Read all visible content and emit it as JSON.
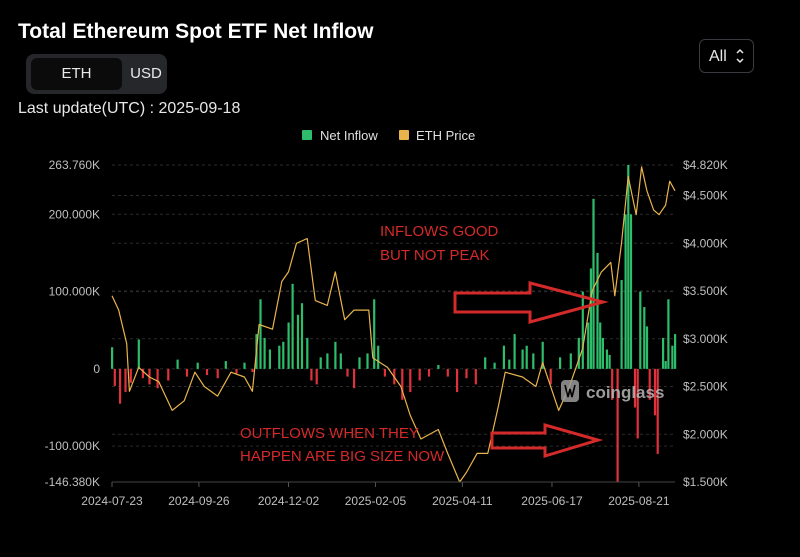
{
  "header": {
    "title": "Total Ethereum Spot ETF Net Inflow",
    "tabs": [
      "ETH",
      "USD"
    ],
    "active_tab": "ETH",
    "last_update": "Last update(UTC) : 2025-09-18",
    "range_select": "All"
  },
  "colors": {
    "inflow_positive": "#2ebd6b",
    "inflow_negative": "#e0323c",
    "eth_price": "#e9b44c",
    "annotation": "#d42a2a",
    "grid": "#2b2b2b"
  },
  "watermark": "coinglass",
  "annotations": {
    "inflows": [
      "INFLOWS GOOD",
      "BUT NOT PEAK"
    ],
    "outflows": [
      "OUTFLOWS WHEN THEY",
      "HAPPEN ARE BIG SIZE NOW"
    ]
  },
  "chart_data": {
    "type": "bar",
    "legend": [
      "Net Inflow",
      "ETH Price"
    ],
    "legend_position": "top-center",
    "grid": true,
    "x_ticks": [
      "2024-07-23",
      "2024-09-26",
      "2024-12-02",
      "2025-02-05",
      "2025-04-11",
      "2025-06-17",
      "2025-08-21"
    ],
    "x_range": [
      "2024-07-23",
      "2025-09-17"
    ],
    "y_left_ticks": [
      "263.760K",
      "200.000K",
      "100.000K",
      "0",
      "-100.000K",
      "-146.380K"
    ],
    "y_left_range": [
      -146380,
      263760
    ],
    "y_right_ticks": [
      "$4.820K",
      "$4.500K",
      "$4.000K",
      "$3.500K",
      "$3.000K",
      "$2.500K",
      "$2.000K",
      "$1.500K"
    ],
    "y_right_range": [
      1500,
      4820
    ],
    "series": [
      {
        "name": "Net Inflow",
        "type": "bar",
        "unit": "ETH",
        "points": [
          [
            "2024-07-23",
            28000
          ],
          [
            "2024-07-25",
            -22000
          ],
          [
            "2024-07-29",
            -45000
          ],
          [
            "2024-08-02",
            -30000
          ],
          [
            "2024-08-06",
            -18000
          ],
          [
            "2024-08-12",
            38000
          ],
          [
            "2024-08-15",
            -12000
          ],
          [
            "2024-08-20",
            -20000
          ],
          [
            "2024-08-26",
            -25000
          ],
          [
            "2024-09-03",
            -15000
          ],
          [
            "2024-09-10",
            12000
          ],
          [
            "2024-09-17",
            -10000
          ],
          [
            "2024-09-25",
            8000
          ],
          [
            "2024-10-02",
            -8000
          ],
          [
            "2024-10-10",
            -12000
          ],
          [
            "2024-10-16",
            10000
          ],
          [
            "2024-10-24",
            -6000
          ],
          [
            "2024-10-30",
            8000
          ],
          [
            "2024-11-05",
            -4000
          ],
          [
            "2024-11-08",
            45000
          ],
          [
            "2024-11-11",
            90000
          ],
          [
            "2024-11-14",
            40000
          ],
          [
            "2024-11-18",
            25000
          ],
          [
            "2024-11-25",
            30000
          ],
          [
            "2024-11-28",
            35000
          ],
          [
            "2024-12-02",
            60000
          ],
          [
            "2024-12-05",
            110000
          ],
          [
            "2024-12-09",
            70000
          ],
          [
            "2024-12-12",
            85000
          ],
          [
            "2024-12-16",
            40000
          ],
          [
            "2024-12-19",
            -15000
          ],
          [
            "2024-12-23",
            -20000
          ],
          [
            "2024-12-26",
            15000
          ],
          [
            "2024-12-31",
            20000
          ],
          [
            "2025-01-06",
            35000
          ],
          [
            "2025-01-10",
            20000
          ],
          [
            "2025-01-15",
            -10000
          ],
          [
            "2025-01-20",
            -25000
          ],
          [
            "2025-01-24",
            15000
          ],
          [
            "2025-01-30",
            20000
          ],
          [
            "2025-02-04",
            90000
          ],
          [
            "2025-02-07",
            30000
          ],
          [
            "2025-02-12",
            -10000
          ],
          [
            "2025-02-19",
            -20000
          ],
          [
            "2025-02-25",
            -40000
          ],
          [
            "2025-03-03",
            -30000
          ],
          [
            "2025-03-10",
            -15000
          ],
          [
            "2025-03-17",
            -10000
          ],
          [
            "2025-03-24",
            5000
          ],
          [
            "2025-03-31",
            -10000
          ],
          [
            "2025-04-07",
            -30000
          ],
          [
            "2025-04-14",
            -12000
          ],
          [
            "2025-04-21",
            -20000
          ],
          [
            "2025-04-28",
            15000
          ],
          [
            "2025-05-05",
            8000
          ],
          [
            "2025-05-12",
            30000
          ],
          [
            "2025-05-16",
            12000
          ],
          [
            "2025-05-20",
            45000
          ],
          [
            "2025-05-26",
            25000
          ],
          [
            "2025-05-29",
            30000
          ],
          [
            "2025-06-03",
            20000
          ],
          [
            "2025-06-10",
            35000
          ],
          [
            "2025-06-16",
            -20000
          ],
          [
            "2025-06-23",
            15000
          ],
          [
            "2025-07-01",
            20000
          ],
          [
            "2025-07-07",
            40000
          ],
          [
            "2025-07-10",
            100000
          ],
          [
            "2025-07-14",
            60000
          ],
          [
            "2025-07-16",
            130000
          ],
          [
            "2025-07-18",
            220000
          ],
          [
            "2025-07-21",
            150000
          ],
          [
            "2025-07-23",
            60000
          ],
          [
            "2025-07-25",
            40000
          ],
          [
            "2025-07-28",
            25000
          ],
          [
            "2025-07-30",
            18000
          ],
          [
            "2025-08-01",
            -40000
          ],
          [
            "2025-08-05",
            -146380
          ],
          [
            "2025-08-08",
            115000
          ],
          [
            "2025-08-11",
            200000
          ],
          [
            "2025-08-13",
            263760
          ],
          [
            "2025-08-15",
            200000
          ],
          [
            "2025-08-18",
            -50000
          ],
          [
            "2025-08-20",
            -90000
          ],
          [
            "2025-08-22",
            100000
          ],
          [
            "2025-08-25",
            80000
          ],
          [
            "2025-08-27",
            55000
          ],
          [
            "2025-08-29",
            -40000
          ],
          [
            "2025-09-02",
            -60000
          ],
          [
            "2025-09-04",
            -110000
          ],
          [
            "2025-09-08",
            40000
          ],
          [
            "2025-09-10",
            10000
          ],
          [
            "2025-09-12",
            90000
          ],
          [
            "2025-09-15",
            30000
          ],
          [
            "2025-09-17",
            45000
          ]
        ]
      },
      {
        "name": "ETH Price",
        "type": "line",
        "unit": "USD",
        "points": [
          [
            "2024-07-23",
            3450
          ],
          [
            "2024-07-28",
            3300
          ],
          [
            "2024-08-03",
            2950
          ],
          [
            "2024-08-05",
            2450
          ],
          [
            "2024-08-12",
            2700
          ],
          [
            "2024-08-20",
            2600
          ],
          [
            "2024-08-27",
            2550
          ],
          [
            "2024-09-06",
            2250
          ],
          [
            "2024-09-15",
            2350
          ],
          [
            "2024-09-23",
            2650
          ],
          [
            "2024-09-30",
            2500
          ],
          [
            "2024-10-10",
            2400
          ],
          [
            "2024-10-20",
            2650
          ],
          [
            "2024-10-30",
            2600
          ],
          [
            "2024-11-05",
            2450
          ],
          [
            "2024-11-10",
            3150
          ],
          [
            "2024-11-20",
            3100
          ],
          [
            "2024-11-27",
            3600
          ],
          [
            "2024-12-02",
            3700
          ],
          [
            "2024-12-08",
            4000
          ],
          [
            "2024-12-16",
            4050
          ],
          [
            "2024-12-22",
            3400
          ],
          [
            "2024-12-31",
            3350
          ],
          [
            "2025-01-06",
            3700
          ],
          [
            "2025-01-13",
            3200
          ],
          [
            "2025-01-20",
            3300
          ],
          [
            "2025-01-31",
            3300
          ],
          [
            "2025-02-03",
            2800
          ],
          [
            "2025-02-14",
            2700
          ],
          [
            "2025-02-24",
            2500
          ],
          [
            "2025-03-03",
            2200
          ],
          [
            "2025-03-11",
            1950
          ],
          [
            "2025-03-24",
            2050
          ],
          [
            "2025-03-31",
            1800
          ],
          [
            "2025-04-09",
            1500
          ],
          [
            "2025-04-14",
            1600
          ],
          [
            "2025-04-22",
            1800
          ],
          [
            "2025-04-30",
            1800
          ],
          [
            "2025-05-08",
            2300
          ],
          [
            "2025-05-13",
            2650
          ],
          [
            "2025-05-26",
            2600
          ],
          [
            "2025-06-05",
            2500
          ],
          [
            "2025-06-10",
            2750
          ],
          [
            "2025-06-22",
            2250
          ],
          [
            "2025-06-30",
            2500
          ],
          [
            "2025-07-10",
            2900
          ],
          [
            "2025-07-17",
            3500
          ],
          [
            "2025-07-24",
            3700
          ],
          [
            "2025-07-31",
            3800
          ],
          [
            "2025-08-03",
            3450
          ],
          [
            "2025-08-08",
            4000
          ],
          [
            "2025-08-13",
            4700
          ],
          [
            "2025-08-19",
            4300
          ],
          [
            "2025-08-23",
            4800
          ],
          [
            "2025-08-27",
            4550
          ],
          [
            "2025-09-01",
            4350
          ],
          [
            "2025-09-05",
            4300
          ],
          [
            "2025-09-10",
            4400
          ],
          [
            "2025-09-13",
            4650
          ],
          [
            "2025-09-17",
            4550
          ]
        ]
      }
    ]
  }
}
